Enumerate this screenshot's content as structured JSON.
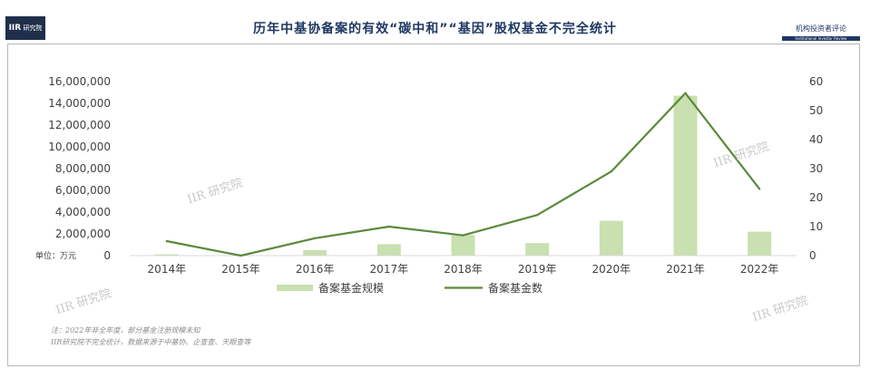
{
  "header": {
    "logo_mark": "IIR",
    "logo_text": "研究院",
    "title": "历年中基协备案的有效“碳中和”“基因”股权基金不完全统计",
    "brand_cn": "机构投资者评论",
    "brand_en": "Institutional Investor Review"
  },
  "watermark": "IIR 研究院",
  "notes": [
    "注：2022年非全年度，部分基金注册规模未知",
    "IIR研究院不完全统计，数据来源于中基协、企查查、天眼查等"
  ],
  "colors": {
    "bar": "#c9e0b0",
    "line": "#5a8a3a",
    "title": "#1f3864",
    "axis_text": "#404040"
  },
  "chart_data": {
    "type": "bar+line",
    "categories": [
      "2014年",
      "2015年",
      "2016年",
      "2017年",
      "2018年",
      "2019年",
      "2020年",
      "2021年",
      "2022年"
    ],
    "unit_label": "单位：万元",
    "series": [
      {
        "name": "备案基金规模",
        "type": "bar",
        "axis": "left",
        "values": [
          120000,
          30000,
          500000,
          1050000,
          1900000,
          1150000,
          3200000,
          14700000,
          2200000
        ]
      },
      {
        "name": "备案基金数",
        "type": "line",
        "axis": "right",
        "values": [
          5,
          0,
          6,
          10,
          7,
          14,
          29,
          56,
          23
        ]
      }
    ],
    "y_left": {
      "min": 0,
      "max": 16000000,
      "ticks": [
        "0",
        "2,000,000",
        "4,000,000",
        "6,000,000",
        "8,000,000",
        "10,000,000",
        "12,000,000",
        "14,000,000",
        "16,000,000"
      ]
    },
    "y_right": {
      "min": 0,
      "max": 60,
      "ticks": [
        "0",
        "10",
        "20",
        "30",
        "40",
        "50",
        "60"
      ]
    },
    "legend_position": "bottom",
    "grid": false
  }
}
